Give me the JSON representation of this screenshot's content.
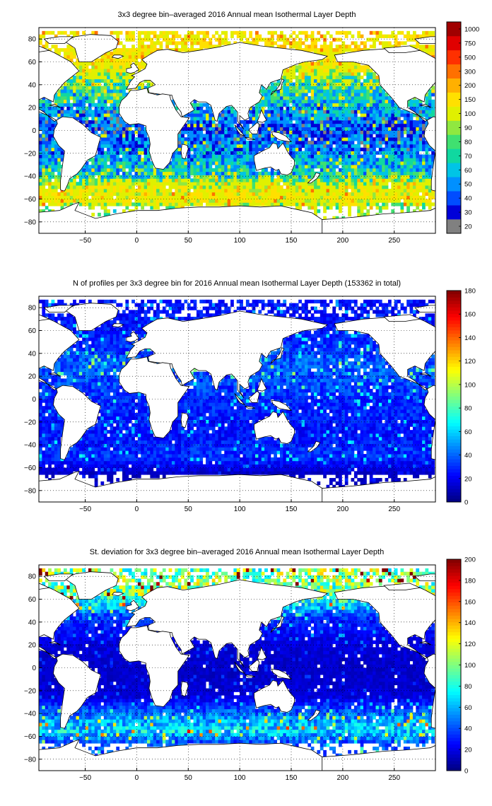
{
  "chart_data": [
    {
      "type": "heatmap",
      "title": "3x3 degree bin–averaged 2016 Annual mean Isothermal Layer Depth",
      "xlim": [
        -95,
        290
      ],
      "ylim": [
        -90,
        90
      ],
      "x_ticks": [
        -50,
        0,
        50,
        100,
        150,
        200,
        250
      ],
      "x_tick_labels": [
        "−50",
        "0",
        "50",
        "100",
        "150",
        "200",
        "250"
      ],
      "y_ticks": [
        80,
        60,
        40,
        20,
        0,
        -20,
        -40,
        -60,
        -80
      ],
      "y_tick_labels": [
        "80",
        "60",
        "40",
        "20",
        "0",
        "−20",
        "−40",
        "−60",
        "−80"
      ],
      "grid": true,
      "colorbar": {
        "scale": "categorical",
        "levels": [
          "20",
          "30",
          "40",
          "50",
          "60",
          "70",
          "80",
          "90",
          "100",
          "150",
          "200",
          "300",
          "500",
          "750",
          "1000"
        ],
        "colors": [
          "#808080",
          "#0000d8",
          "#004cff",
          "#0090ff",
          "#00c4e6",
          "#10d8a0",
          "#40e070",
          "#90e840",
          "#e0f000",
          "#ffe000",
          "#ffb000",
          "#ff7000",
          "#ff3000",
          "#e00000",
          "#a00000"
        ]
      },
      "pattern": {
        "mean_field": [
          [
            60,
            160
          ],
          [
            45,
            90
          ],
          [
            20,
            60
          ],
          [
            0,
            45
          ],
          [
            -20,
            55
          ],
          [
            -40,
            75
          ],
          [
            -50,
            130
          ],
          [
            -60,
            150
          ],
          [
            -68,
            100
          ]
        ],
        "undefined_fill_value": "20"
      }
    },
    {
      "type": "heatmap",
      "title": "N of profiles per 3x3 degree bin for 2016 Annual mean Isothermal Layer Depth  (153362 in total)",
      "xlim": [
        -95,
        290
      ],
      "ylim": [
        -90,
        90
      ],
      "x_ticks": [
        -50,
        0,
        50,
        100,
        150,
        200,
        250
      ],
      "x_tick_labels": [
        "−50",
        "0",
        "50",
        "100",
        "150",
        "200",
        "250"
      ],
      "y_ticks": [
        80,
        60,
        40,
        20,
        0,
        -20,
        -40,
        -60,
        -80
      ],
      "y_tick_labels": [
        "80",
        "60",
        "40",
        "20",
        "0",
        "−20",
        "−40",
        "−60",
        "−80"
      ],
      "grid": true,
      "colorbar": {
        "scale": "continuous",
        "colormap": "jet",
        "range": [
          0,
          180
        ],
        "ticks": [
          0,
          20,
          40,
          60,
          80,
          100,
          120,
          140,
          160,
          180
        ]
      },
      "pattern": {
        "mean_field": [
          [
            60,
            25
          ],
          [
            30,
            40
          ],
          [
            0,
            30
          ],
          [
            -30,
            25
          ],
          [
            -50,
            30
          ],
          [
            -65,
            12
          ]
        ]
      }
    },
    {
      "type": "heatmap",
      "title": "St. deviation for 3x3 degree bin–averaged 2016 Annual mean Isothermal Layer Depth",
      "xlim": [
        -95,
        290
      ],
      "ylim": [
        -90,
        90
      ],
      "x_ticks": [
        -50,
        0,
        50,
        100,
        150,
        200,
        250
      ],
      "x_tick_labels": [
        "−50",
        "0",
        "50",
        "100",
        "150",
        "200",
        "250"
      ],
      "y_ticks": [
        80,
        60,
        40,
        20,
        0,
        -20,
        -40,
        -60,
        -80
      ],
      "y_tick_labels": [
        "80",
        "60",
        "40",
        "20",
        "0",
        "−20",
        "−40",
        "−60",
        "−80"
      ],
      "grid": true,
      "colorbar": {
        "scale": "continuous",
        "colormap": "jet",
        "range": [
          0,
          200
        ],
        "ticks": [
          0,
          20,
          40,
          60,
          80,
          100,
          120,
          140,
          160,
          180,
          200
        ]
      },
      "pattern": {
        "mean_field": [
          [
            65,
            100
          ],
          [
            45,
            35
          ],
          [
            20,
            18
          ],
          [
            0,
            14
          ],
          [
            -25,
            18
          ],
          [
            -45,
            55
          ],
          [
            -55,
            70
          ],
          [
            -65,
            40
          ]
        ]
      }
    }
  ]
}
